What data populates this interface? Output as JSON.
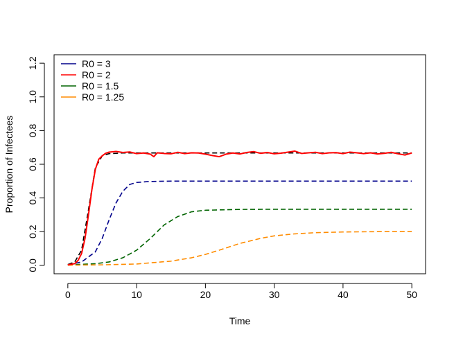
{
  "chart_data": {
    "type": "line",
    "title": "",
    "xlabel": "Time",
    "ylabel": "Proportion of Infectees",
    "xlim": [
      -2,
      52
    ],
    "ylim": [
      -0.05,
      1.25
    ],
    "x_ticks": [
      0,
      10,
      20,
      30,
      40,
      50
    ],
    "y_ticks": [
      0.0,
      0.2,
      0.4,
      0.6,
      0.8,
      1.0,
      1.2
    ],
    "x_tick_labels": [
      "0",
      "10",
      "20",
      "30",
      "40",
      "50"
    ],
    "y_tick_labels": [
      "0.0",
      "0.2",
      "0.4",
      "0.6",
      "0.8",
      "1.0",
      "1.2"
    ],
    "grid": false,
    "legend": {
      "position": "top-left",
      "entries": [
        {
          "label": "R0 = 3",
          "color": "#00008B"
        },
        {
          "label": "R0 = 2",
          "color": "#FF0000"
        },
        {
          "label": "R0 = 1.5",
          "color": "#006400"
        },
        {
          "label": "R0 = 1.25",
          "color": "#FF8C00"
        }
      ]
    },
    "series": [
      {
        "style": "dashed",
        "color": "#000000",
        "x": [
          0,
          1,
          2,
          3,
          4,
          5,
          6,
          8,
          10,
          15,
          20,
          30,
          40,
          50
        ],
        "y": [
          0.005,
          0.02,
          0.09,
          0.33,
          0.58,
          0.65,
          0.663,
          0.667,
          0.667,
          0.667,
          0.667,
          0.667,
          0.667,
          0.667
        ]
      },
      {
        "style": "dashed",
        "color": "#00008B",
        "x": [
          0,
          2,
          4,
          5,
          6,
          7,
          8,
          9,
          10,
          12,
          15,
          20,
          30,
          40,
          50
        ],
        "y": [
          0.003,
          0.02,
          0.08,
          0.16,
          0.27,
          0.37,
          0.44,
          0.48,
          0.492,
          0.498,
          0.5,
          0.5,
          0.5,
          0.5,
          0.5
        ]
      },
      {
        "style": "dashed",
        "color": "#006400",
        "x": [
          0,
          4,
          6,
          8,
          10,
          12,
          14,
          16,
          18,
          20,
          25,
          30,
          40,
          50
        ],
        "y": [
          0.002,
          0.01,
          0.02,
          0.045,
          0.09,
          0.16,
          0.24,
          0.29,
          0.318,
          0.327,
          0.332,
          0.333,
          0.333,
          0.333
        ]
      },
      {
        "style": "dashed",
        "color": "#FF8C00",
        "x": [
          0,
          5,
          10,
          15,
          18,
          20,
          22,
          25,
          28,
          30,
          33,
          36,
          40,
          45,
          50
        ],
        "y": [
          0.001,
          0.003,
          0.008,
          0.025,
          0.045,
          0.065,
          0.09,
          0.13,
          0.16,
          0.175,
          0.187,
          0.194,
          0.198,
          0.2,
          0.2
        ]
      },
      {
        "style": "solid",
        "color": "#FF0000",
        "x": [
          0,
          1,
          1.5,
          2,
          2.5,
          3,
          3.5,
          4,
          4.5,
          5,
          5.5,
          6,
          7,
          8,
          9,
          10,
          11,
          12,
          12.5,
          13,
          14,
          15,
          16,
          17,
          18,
          19,
          20,
          21,
          22,
          23,
          24,
          25,
          26,
          27,
          28,
          29,
          30,
          31,
          32,
          33,
          34,
          35,
          36,
          37,
          38,
          39,
          40,
          41,
          42,
          43,
          44,
          45,
          46,
          47,
          48,
          49,
          50
        ],
        "y": [
          0.003,
          0.01,
          0.03,
          0.07,
          0.16,
          0.3,
          0.45,
          0.57,
          0.63,
          0.65,
          0.665,
          0.672,
          0.676,
          0.67,
          0.673,
          0.663,
          0.667,
          0.66,
          0.645,
          0.668,
          0.664,
          0.662,
          0.671,
          0.663,
          0.668,
          0.667,
          0.66,
          0.652,
          0.645,
          0.66,
          0.667,
          0.661,
          0.67,
          0.675,
          0.665,
          0.67,
          0.662,
          0.666,
          0.672,
          0.678,
          0.664,
          0.668,
          0.671,
          0.663,
          0.668,
          0.669,
          0.663,
          0.672,
          0.668,
          0.663,
          0.668,
          0.661,
          0.665,
          0.671,
          0.662,
          0.655,
          0.667
        ]
      }
    ]
  }
}
